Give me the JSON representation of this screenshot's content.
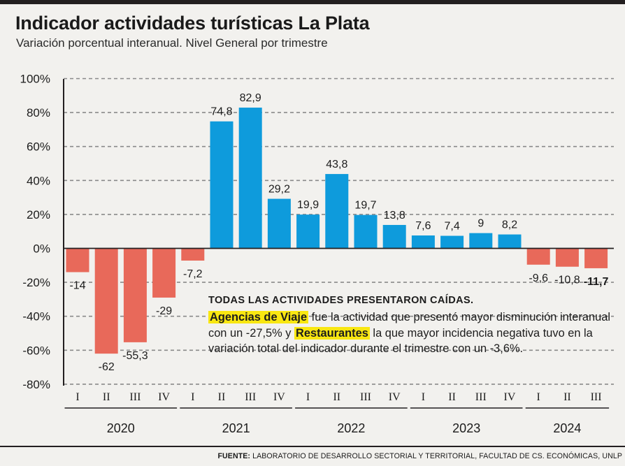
{
  "header": {
    "title": "Indicador actividades turísticas La Plata",
    "subtitle": "Variación porcentual interanual. Nivel General por trimestre"
  },
  "colors": {
    "positive": "#0e9bdc",
    "negative": "#e8695a",
    "highlight": "#f9e711",
    "text": "#1c1c1c",
    "grid": "#8a8a8a"
  },
  "chart_data": {
    "type": "bar",
    "title": "Indicador actividades turísticas La Plata",
    "subtitle": "Variación porcentual interanual. Nivel General por trimestre",
    "ylabel": "",
    "xlabel": "",
    "ylim": [
      -80,
      100
    ],
    "ytick_values": [
      100,
      80,
      60,
      40,
      20,
      0,
      -20,
      -40,
      -60,
      -80
    ],
    "ytick_labels": [
      "100%",
      "80%",
      "60%",
      "40%",
      "20%",
      "0%",
      "-20%",
      "-40%",
      "-60%",
      "-80%"
    ],
    "grid": true,
    "groups": [
      {
        "year": "2020",
        "quarters": [
          "I",
          "II",
          "III",
          "IV"
        ],
        "values": [
          -14,
          -62,
          -55.3,
          -29
        ],
        "labels": [
          "-14",
          "-62",
          "-55,3",
          "-29"
        ]
      },
      {
        "year": "2021",
        "quarters": [
          "I",
          "II",
          "III",
          "IV"
        ],
        "values": [
          -7.2,
          74.8,
          82.9,
          29.2
        ],
        "labels": [
          "-7,2",
          "74,8",
          "82,9",
          "29,2"
        ]
      },
      {
        "year": "2022",
        "quarters": [
          "I",
          "II",
          "III",
          "IV"
        ],
        "values": [
          19.9,
          43.8,
          19.7,
          13.8
        ],
        "labels": [
          "19,9",
          "43,8",
          "19,7",
          "13,8"
        ]
      },
      {
        "year": "2023",
        "quarters": [
          "I",
          "II",
          "III",
          "IV"
        ],
        "values": [
          7.6,
          7.4,
          9,
          8.2
        ],
        "labels": [
          "7,6",
          "7,4",
          "9",
          "8,2"
        ]
      },
      {
        "year": "2024",
        "quarters": [
          "I",
          "II",
          "III"
        ],
        "values": [
          -9.6,
          -10.8,
          -11.7
        ],
        "labels": [
          "-9,6",
          "-10,8",
          "-11,7"
        ]
      }
    ],
    "emphasized_label": "-11,7"
  },
  "annotation": {
    "heading": "TODAS LAS ACTIVIDADES PRESENTARON CAÍDAS.",
    "hl1": "Agencias de Viaje",
    "text1": " fue la actividad que presentó mayor disminución interanual con un -27,5% y ",
    "hl2": "Restaurantes",
    "text2": " la que mayor incidencia negativa tuvo en la variación total del indicador durante el trimestre con un -3,6%."
  },
  "footer": {
    "source_label": "FUENTE:",
    "source_text": " LABORATORIO DE DESARROLLO SECTORIAL Y TERRITORIAL, FACULTAD DE CS. ECONÓMICAS, UNLP"
  }
}
